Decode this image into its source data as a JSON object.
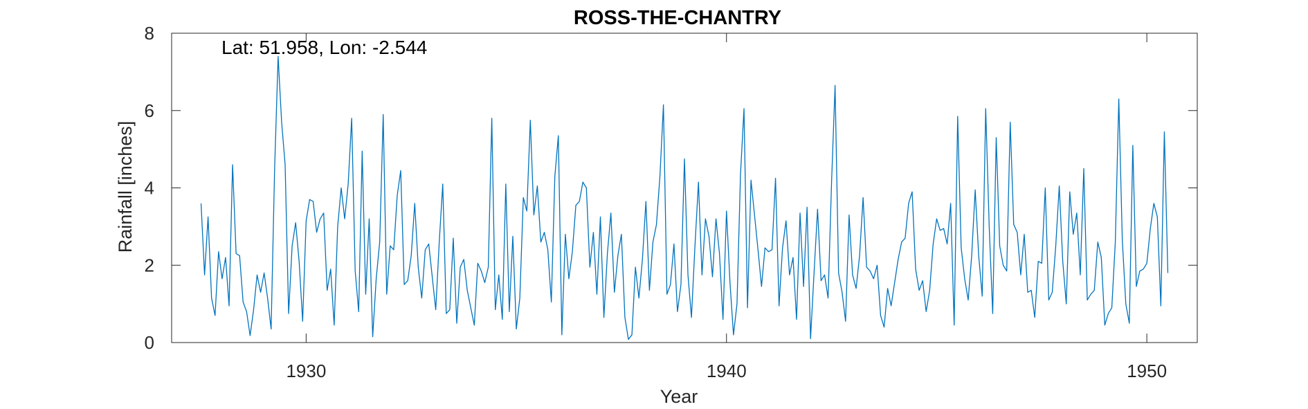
{
  "chart_data": {
    "type": "line",
    "title": "ROSS-THE-CHANTRY",
    "xlabel": "Year",
    "ylabel": "Rainfall [inches]",
    "annotation": "Lat: 51.958, Lon: -2.544",
    "xlim": [
      1926.8,
      1951.2
    ],
    "ylim": [
      0,
      8
    ],
    "xticks": [
      1930,
      1940,
      1950
    ],
    "yticks": [
      0,
      2,
      4,
      6,
      8
    ],
    "grid": false,
    "line_color": "#0072BD",
    "x_start": 1927.5,
    "x_step": 0.0833333,
    "series": [
      {
        "values": [
          3.6,
          1.75,
          3.25,
          1.15,
          0.7,
          2.35,
          1.65,
          2.2,
          0.95,
          4.6,
          2.3,
          2.25,
          1.05,
          0.8,
          0.18,
          0.85,
          1.75,
          1.3,
          1.8,
          1.15,
          0.35,
          4.5,
          7.4,
          5.7,
          4.6,
          0.75,
          2.5,
          3.1,
          2.1,
          0.55,
          3.15,
          3.7,
          3.65,
          2.85,
          3.2,
          3.35,
          1.35,
          1.9,
          0.45,
          3.0,
          4.0,
          3.2,
          4.1,
          5.8,
          1.85,
          0.8,
          4.95,
          1.25,
          3.2,
          0.15,
          1.65,
          2.6,
          5.9,
          1.25,
          2.5,
          2.4,
          3.8,
          4.45,
          1.5,
          1.6,
          2.25,
          3.6,
          1.95,
          1.15,
          2.4,
          2.55,
          1.7,
          0.85,
          2.6,
          4.1,
          0.75,
          0.85,
          2.7,
          0.5,
          1.95,
          2.15,
          1.35,
          0.9,
          0.45,
          2.05,
          1.85,
          1.55,
          1.95,
          5.8,
          0.85,
          1.75,
          0.6,
          4.1,
          0.8,
          2.75,
          0.35,
          1.15,
          3.75,
          3.4,
          5.75,
          3.3,
          4.05,
          2.6,
          2.85,
          2.4,
          1.05,
          4.3,
          5.35,
          0.2,
          2.8,
          1.65,
          2.35,
          3.55,
          3.65,
          4.15,
          4.0,
          1.95,
          2.85,
          1.25,
          3.25,
          0.65,
          2.3,
          3.35,
          1.3,
          2.25,
          2.8,
          0.65,
          0.08,
          0.2,
          1.95,
          1.15,
          2.15,
          3.65,
          1.35,
          2.6,
          3.05,
          4.3,
          6.15,
          1.25,
          1.5,
          2.55,
          0.8,
          1.5,
          4.75,
          1.75,
          0.65,
          2.5,
          4.15,
          1.75,
          3.2,
          2.75,
          1.7,
          3.2,
          2.3,
          0.6,
          3.4,
          1.55,
          0.2,
          1.0,
          4.35,
          6.05,
          0.9,
          4.2,
          3.3,
          2.4,
          1.45,
          2.45,
          2.35,
          2.4,
          4.25,
          0.95,
          2.45,
          3.15,
          1.75,
          2.2,
          0.6,
          3.35,
          1.45,
          3.5,
          0.1,
          1.8,
          3.45,
          1.6,
          1.75,
          1.15,
          4.15,
          6.65,
          1.8,
          1.3,
          0.55,
          3.3,
          1.75,
          1.4,
          2.25,
          3.75,
          1.95,
          1.85,
          1.65,
          2.0,
          0.7,
          0.4,
          1.4,
          0.95,
          1.55,
          2.15,
          2.6,
          2.7,
          3.6,
          3.9,
          1.9,
          1.35,
          1.6,
          0.8,
          1.35,
          2.55,
          3.2,
          2.9,
          2.95,
          2.55,
          3.6,
          0.45,
          5.85,
          2.45,
          1.65,
          1.1,
          2.25,
          3.95,
          2.25,
          1.2,
          6.05,
          3.0,
          0.75,
          5.3,
          2.5,
          2.0,
          1.85,
          5.7,
          3.05,
          2.85,
          1.75,
          2.8,
          1.3,
          1.35,
          0.65,
          2.1,
          2.05,
          4.0,
          1.1,
          1.3,
          2.5,
          4.05,
          2.1,
          1.0,
          3.9,
          2.8,
          3.35,
          1.75,
          4.5,
          1.1,
          1.25,
          1.35,
          2.6,
          2.2,
          0.45,
          0.75,
          0.9,
          2.6,
          6.3,
          2.65,
          1.0,
          0.5,
          5.1,
          1.45,
          1.85,
          1.9,
          2.05,
          2.95,
          3.6,
          3.25,
          0.95,
          5.45,
          1.8
        ]
      }
    ]
  }
}
